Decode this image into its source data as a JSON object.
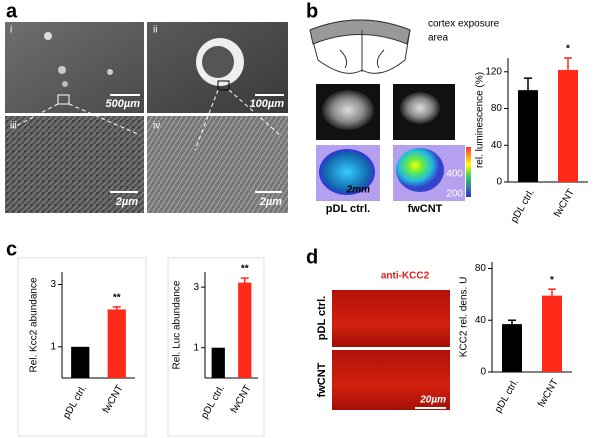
{
  "panels": {
    "a": {
      "letter": "a",
      "images": [
        {
          "label": "i",
          "scale": "500µm"
        },
        {
          "label": "ii",
          "scale": "100µm"
        },
        {
          "label": "iii",
          "scale": "2µm"
        },
        {
          "label": "iv",
          "scale": "2µm"
        }
      ]
    },
    "b": {
      "letter": "b",
      "schematic_label": [
        "cortex exposure",
        "area"
      ],
      "scale": "2mm",
      "colorbar": [
        400,
        200
      ],
      "image_labels": [
        "pDL ctrl.",
        "fwCNT"
      ]
    },
    "c": {
      "letter": "c"
    },
    "d": {
      "letter": "d",
      "stain": "anti-KCC2",
      "image_labels": [
        "pDL ctrl.",
        "fwCNT"
      ],
      "scale": "20µm"
    }
  },
  "chart_data": [
    {
      "type": "bar",
      "y_label": "rel. luminescence (%)",
      "categories": [
        "pDL ctrl.",
        "fwCNT"
      ],
      "values": [
        100,
        122
      ],
      "errors": [
        13,
        13
      ],
      "colors": [
        "#000000",
        "#ff2a1a"
      ],
      "ylim": [
        0,
        135
      ],
      "yticks": [
        0,
        40,
        80,
        120
      ],
      "annotation": "*"
    },
    {
      "type": "bar",
      "y_label": "Rel. Kcc2 abundance",
      "categories": [
        "pDL ctrl.",
        "fwCNT"
      ],
      "values": [
        1,
        2.2
      ],
      "errors": [
        null,
        0.08
      ],
      "colors": [
        "#000000",
        "#ff2a1a"
      ],
      "ylim": [
        0,
        3.4
      ],
      "yticks": [
        1,
        3
      ],
      "annotation": "**"
    },
    {
      "type": "bar",
      "y_label": "Rel. Luc abundance",
      "categories": [
        "pDL ctrl.",
        "fwCNT"
      ],
      "values": [
        1,
        3.15
      ],
      "errors": [
        null,
        0.15
      ],
      "colors": [
        "#000000",
        "#ff2a1a"
      ],
      "ylim": [
        0,
        3.5
      ],
      "yticks": [
        1,
        3
      ],
      "annotation": "**"
    },
    {
      "type": "bar",
      "y_label": "KCC2 rel. dens. U",
      "categories": [
        "pDL ctrl.",
        "fwCNT"
      ],
      "values": [
        37,
        59
      ],
      "errors": [
        3,
        5
      ],
      "colors": [
        "#000000",
        "#ff2a1a"
      ],
      "ylim": [
        0,
        85
      ],
      "yticks": [
        0,
        40,
        80
      ],
      "annotation": "*"
    }
  ]
}
